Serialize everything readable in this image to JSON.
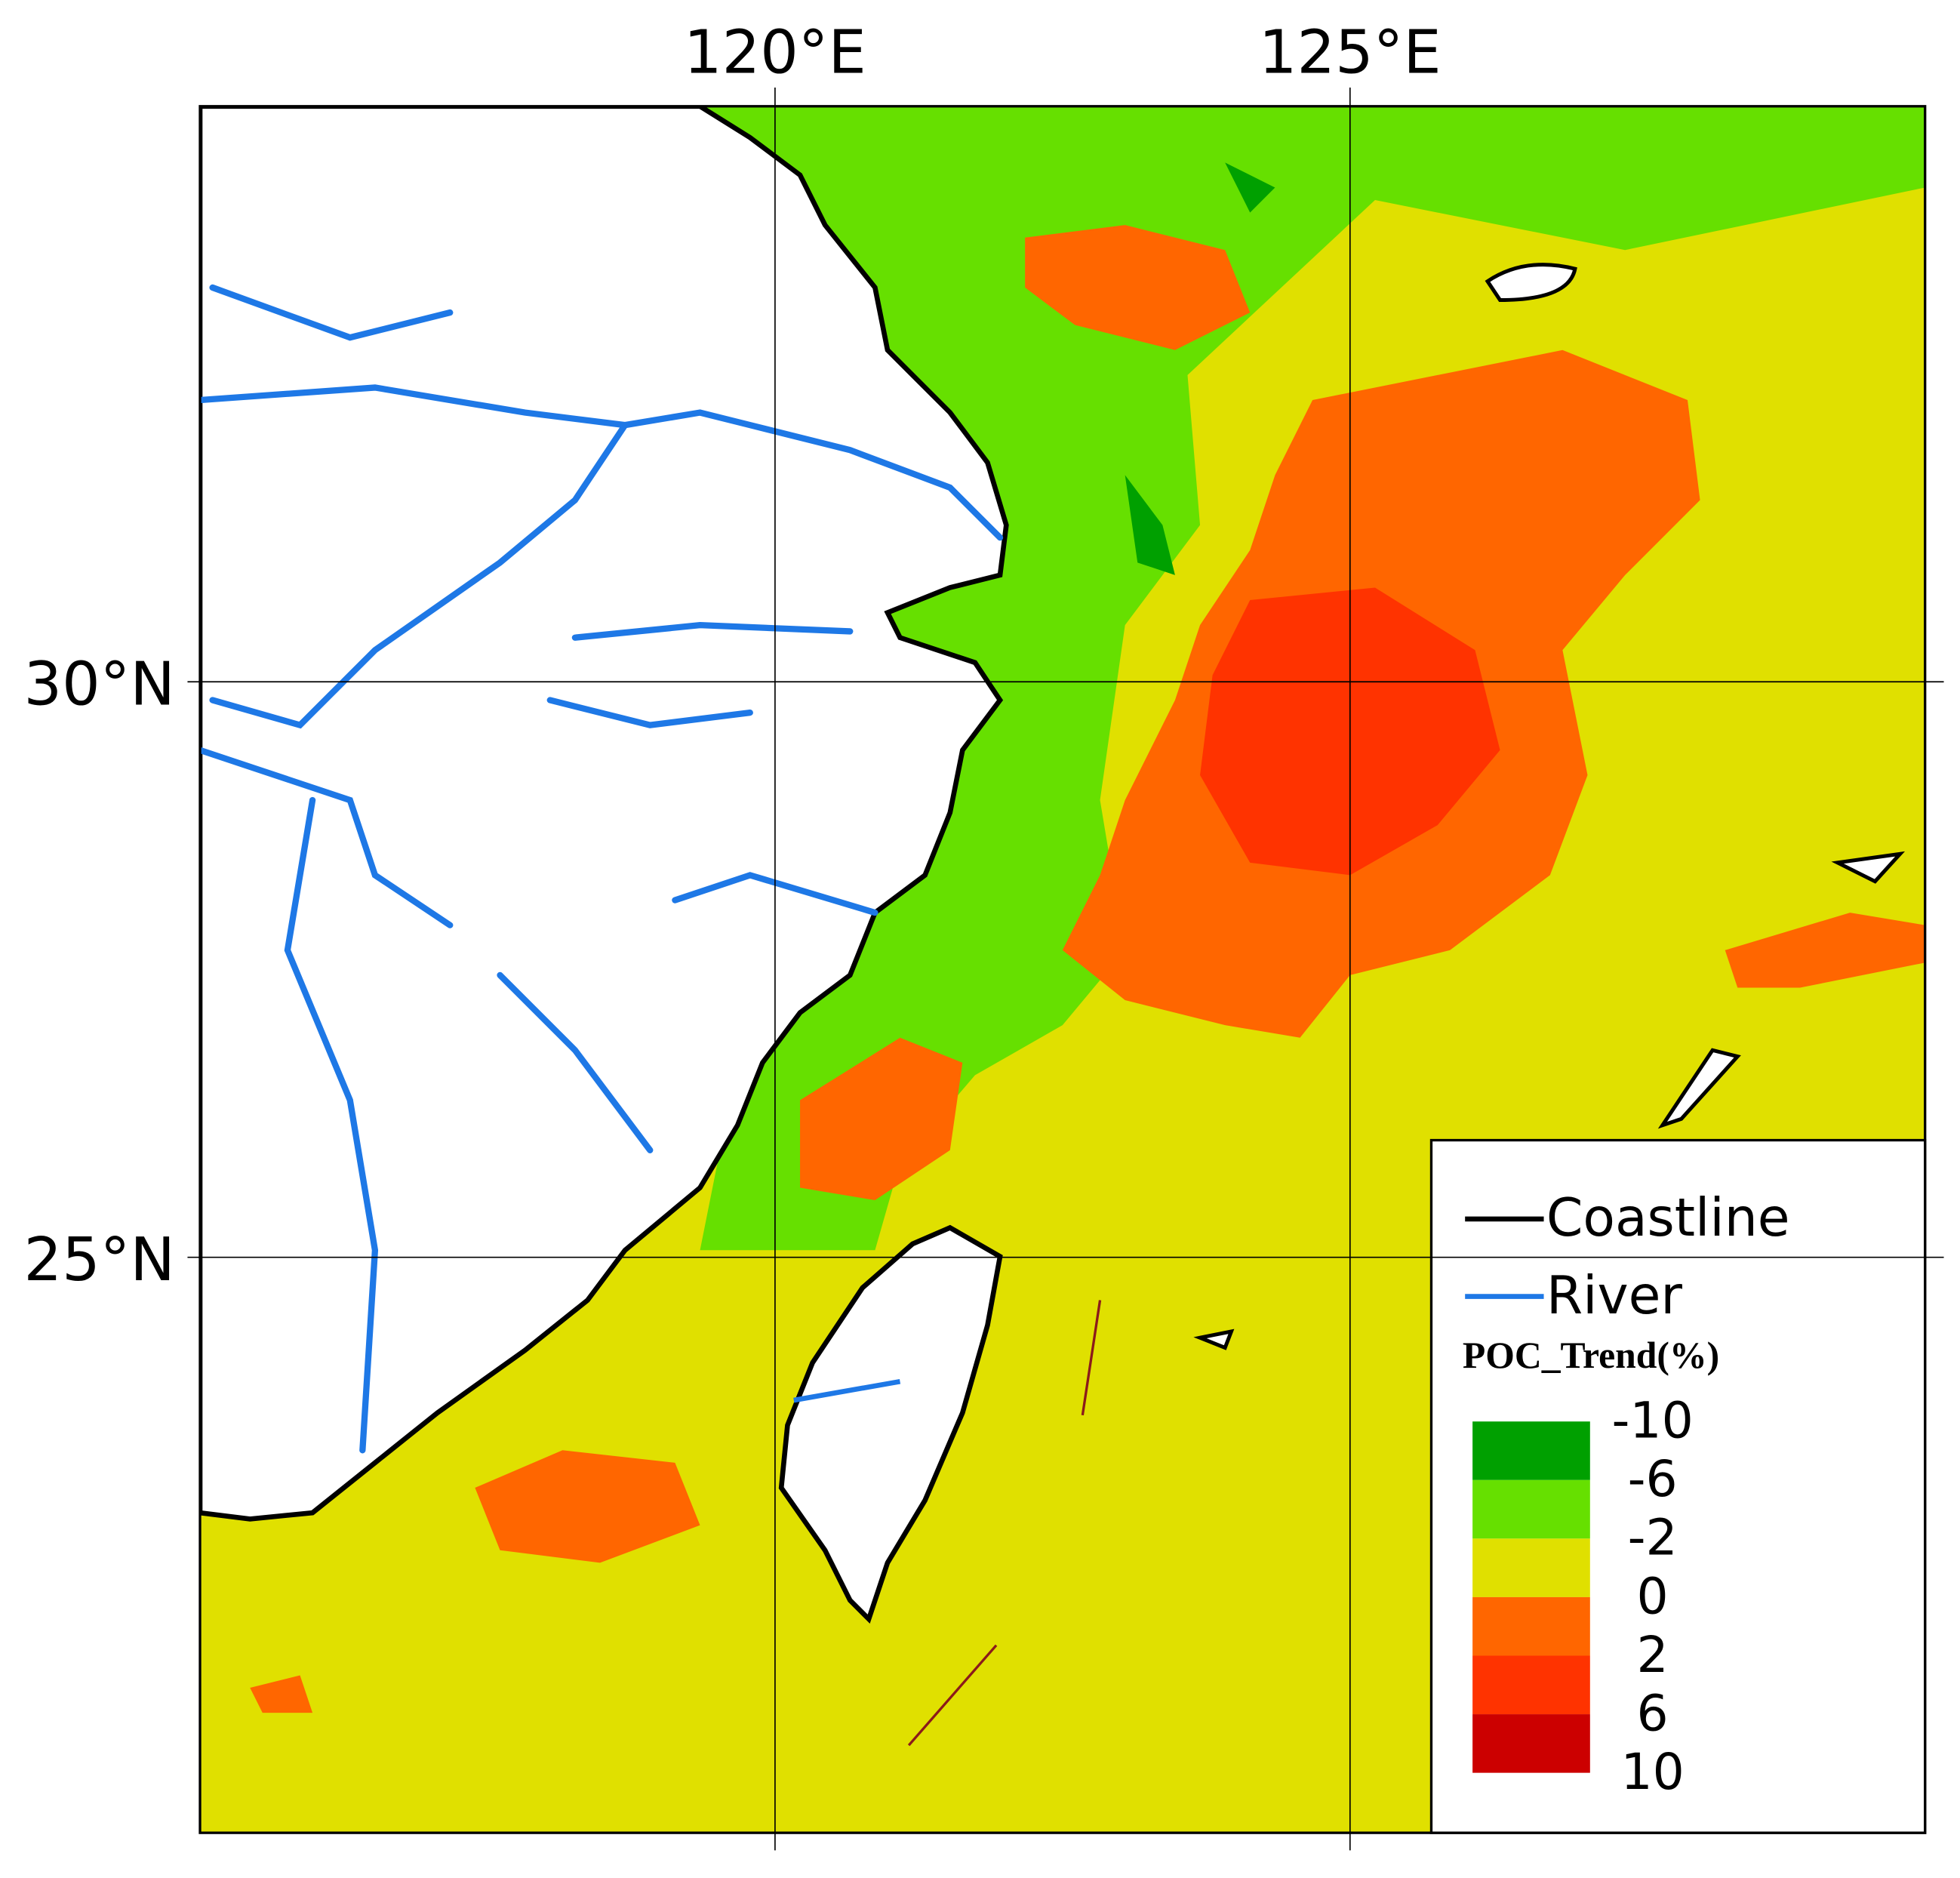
{
  "map": {
    "lon_range": [
      115,
      130
    ],
    "lat_range": [
      20,
      35
    ],
    "lon_ticks": [
      {
        "value": 120,
        "label": "120°E"
      },
      {
        "value": 125,
        "label": "125°E"
      }
    ],
    "lat_ticks": [
      {
        "value": 30,
        "label": "30°N"
      },
      {
        "value": 25,
        "label": "25°N"
      }
    ],
    "legend": {
      "lines": [
        {
          "name": "Coastline",
          "color": "#000000"
        },
        {
          "name": "River",
          "color": "#1e78e6"
        }
      ],
      "colorbar_title": "POC_Trend(%)",
      "colorbar": {
        "bounds": [
          -10,
          -6,
          -2,
          0,
          2,
          6,
          10
        ],
        "colors": [
          "#00a000",
          "#66e000",
          "#e0e000",
          "#ff6600",
          "#ff3300",
          "#cc0000"
        ]
      }
    }
  }
}
